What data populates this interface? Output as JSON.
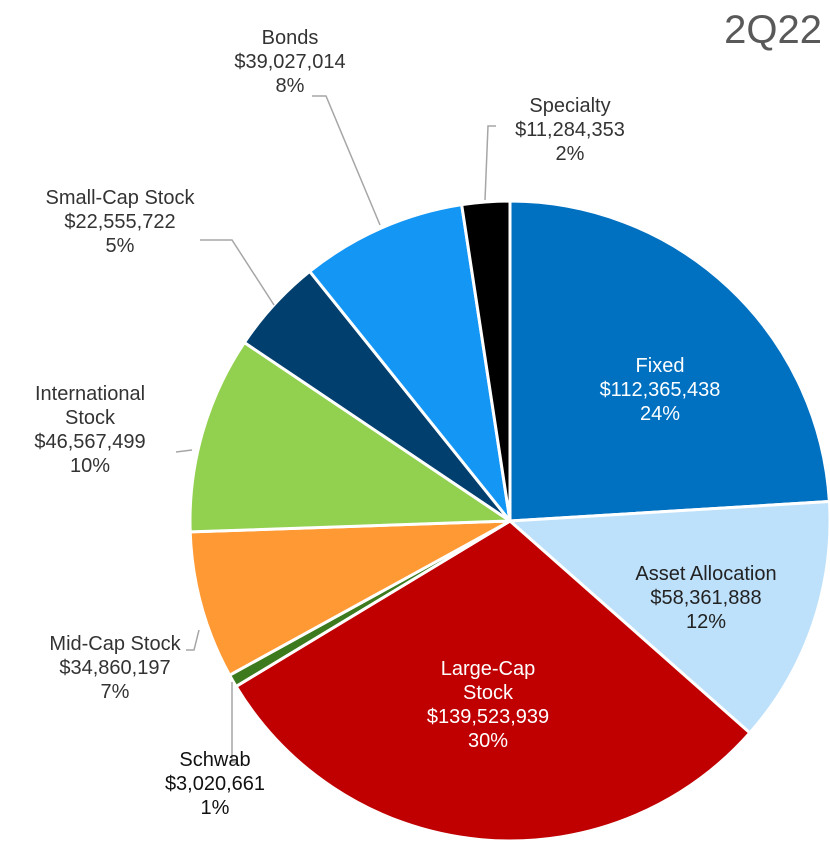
{
  "chart_data": {
    "type": "pie",
    "title": "2Q22",
    "categories": [
      "Fixed",
      "Asset Allocation",
      "Large-Cap Stock",
      "Schwab",
      "Mid-Cap Stock",
      "International Stock",
      "Small-Cap Stock",
      "Bonds",
      "Specialty"
    ],
    "values": [
      112365438,
      58361888,
      139523939,
      3020661,
      34860197,
      46567499,
      22555722,
      39027014,
      11284353
    ],
    "value_labels": [
      "$112,365,438",
      "$58,361,888",
      "$139,523,939",
      "$3,020,661",
      "$34,860,197",
      "$46,567,499",
      "$22,555,722",
      "$39,027,014",
      "$11,284,353"
    ],
    "percents": [
      24,
      12,
      30,
      1,
      7,
      10,
      5,
      8,
      2
    ],
    "percent_labels": [
      "24%",
      "12%",
      "30%",
      "1%",
      "7%",
      "10%",
      "5%",
      "8%",
      "2%"
    ],
    "colors": [
      "#0070c0",
      "#bde0fb",
      "#c00000",
      "#3d7a1e",
      "#ff9933",
      "#92d050",
      "#003f6e",
      "#1496f5",
      "#000000"
    ]
  }
}
